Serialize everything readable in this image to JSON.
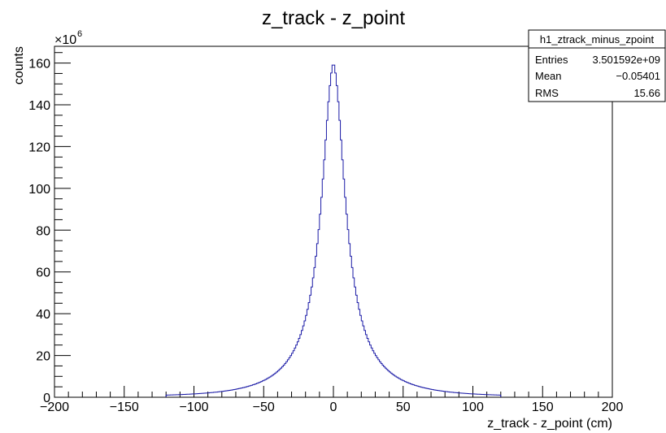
{
  "chart_data": {
    "type": "histogram",
    "title": "z_track - z_point",
    "xlabel": "z_track - z_point (cm)",
    "ylabel": "counts",
    "xlim": [
      -200,
      200
    ],
    "ylim": [
      0,
      168
    ],
    "y_multiplier_label": "×10",
    "y_multiplier_exponent": "6",
    "x_ticks": [
      -200,
      -150,
      -100,
      -50,
      0,
      50,
      100,
      150,
      200
    ],
    "y_ticks": [
      0,
      20,
      40,
      60,
      80,
      100,
      120,
      140,
      160
    ],
    "x_tick_labels": [
      "−200",
      "−150",
      "−100",
      "−50",
      "0",
      "50",
      "100",
      "150",
      "200"
    ],
    "y_tick_labels": [
      "0",
      "20",
      "40",
      "60",
      "80",
      "100",
      "120",
      "140",
      "160"
    ],
    "line_color": "#1a1aa6",
    "peak_value": 160,
    "peak_x": 0,
    "half_width_scale": 10,
    "x_range_nonzero": [
      -120,
      120
    ],
    "grid": false,
    "legend_placement": "top-right"
  },
  "stats_box": {
    "name": "h1_ztrack_minus_zpoint",
    "rows": [
      {
        "label": "Entries",
        "value": "3.501592e+09"
      },
      {
        "label": "Mean",
        "value": "−0.05401"
      },
      {
        "label": "RMS",
        "value": "15.66"
      }
    ]
  }
}
